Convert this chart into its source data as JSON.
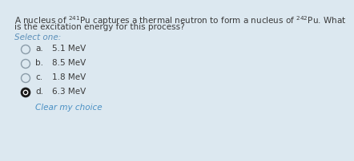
{
  "background_color": "#dce8f0",
  "question_line1": "A nucleus of $^{241}$Pu captures a thermal neutron to form a nucleus of $^{242}$Pu. What",
  "question_line2": "is the excitation energy for this process?",
  "select_one": "Select one:",
  "options": [
    {
      "label": "a.",
      "text": "5.1 MeV",
      "selected": false
    },
    {
      "label": "b.",
      "text": "8.5 MeV",
      "selected": false
    },
    {
      "label": "c.",
      "text": "1.8 MeV",
      "selected": false
    },
    {
      "label": "d.",
      "text": "6.3 MeV",
      "selected": true
    }
  ],
  "clear_choice": "Clear my choice",
  "text_color": "#3a3a3a",
  "select_color": "#5b8fb9",
  "clear_color": "#4a90c4",
  "radio_unsel_edge": "#8a9ba8",
  "radio_sel_edge": "#1a1a1a",
  "radio_sel_fill": "#1a1a1a",
  "font_size_question": 7.5,
  "font_size_option": 7.5,
  "font_size_select": 7.5
}
